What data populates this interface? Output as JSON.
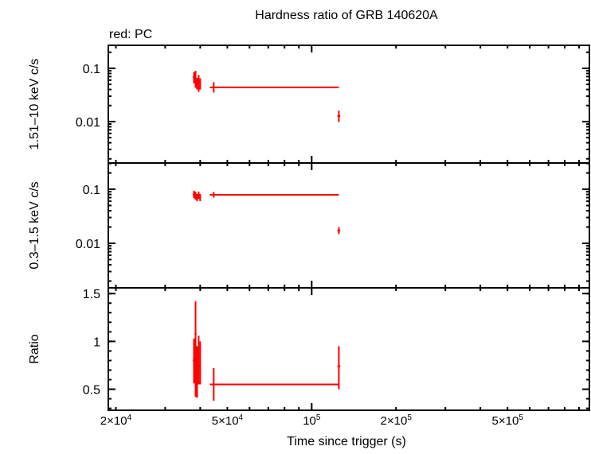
{
  "chart_data": {
    "type": "scatter",
    "title": "Hardness ratio of GRB 140620A",
    "subtitle": "red: PC",
    "xlabel": "Time since trigger (s)",
    "xscale": "log",
    "xlim": [
      18800,
      980000
    ],
    "xticks": [
      {
        "v": 20000,
        "m": "2×10",
        "e": "4"
      },
      {
        "v": 50000,
        "m": "5×10",
        "e": "4"
      },
      {
        "v": 100000,
        "m": "10",
        "e": "5"
      },
      {
        "v": 200000,
        "m": "2×10",
        "e": "5"
      },
      {
        "v": 500000,
        "m": "5×10",
        "e": "5"
      }
    ],
    "series_color": "#ff0000",
    "panels": [
      {
        "ylabel": "1.51–10 keV c/s",
        "yscale": "log",
        "ylim": [
          0.00167,
          0.27
        ],
        "yticks": [
          {
            "v": 0.1,
            "label": "0.1"
          },
          {
            "v": 0.01,
            "label": "0.01"
          }
        ],
        "points": [
          {
            "x": 38000,
            "xlo": 37600,
            "xhi": 38300,
            "y": 0.068,
            "ylo": 0.052,
            "yhi": 0.085
          },
          {
            "x": 38500,
            "xlo": 38200,
            "xhi": 38800,
            "y": 0.062,
            "ylo": 0.043,
            "yhi": 0.09
          },
          {
            "x": 39000,
            "xlo": 38700,
            "xhi": 39300,
            "y": 0.052,
            "ylo": 0.04,
            "yhi": 0.066
          },
          {
            "x": 39500,
            "xlo": 39200,
            "xhi": 39800,
            "y": 0.058,
            "ylo": 0.036,
            "yhi": 0.075
          },
          {
            "x": 40000,
            "xlo": 39800,
            "xhi": 40300,
            "y": 0.05,
            "ylo": 0.04,
            "yhi": 0.065
          },
          {
            "x": 44700,
            "xlo": 43300,
            "xhi": 125000,
            "y": 0.0438,
            "ylo": 0.035,
            "yhi": 0.055
          },
          {
            "x": 125000,
            "xlo": 123500,
            "xhi": 126500,
            "y": 0.0127,
            "ylo": 0.0098,
            "yhi": 0.016
          }
        ]
      },
      {
        "ylabel": "0.3–1.5 keV c/s",
        "yscale": "log",
        "ylim": [
          0.0015,
          0.306
        ],
        "yticks": [
          {
            "v": 0.1,
            "label": "0.1"
          },
          {
            "v": 0.01,
            "label": "0.01"
          }
        ],
        "points": [
          {
            "x": 38000,
            "xlo": 37600,
            "xhi": 38300,
            "y": 0.08,
            "ylo": 0.068,
            "yhi": 0.094
          },
          {
            "x": 38500,
            "xlo": 38200,
            "xhi": 38800,
            "y": 0.075,
            "ylo": 0.064,
            "yhi": 0.09
          },
          {
            "x": 39000,
            "xlo": 38700,
            "xhi": 39300,
            "y": 0.07,
            "ylo": 0.06,
            "yhi": 0.082
          },
          {
            "x": 39500,
            "xlo": 39200,
            "xhi": 39800,
            "y": 0.078,
            "ylo": 0.066,
            "yhi": 0.09
          },
          {
            "x": 40000,
            "xlo": 39800,
            "xhi": 40300,
            "y": 0.07,
            "ylo": 0.06,
            "yhi": 0.082
          },
          {
            "x": 44700,
            "xlo": 43300,
            "xhi": 125000,
            "y": 0.079,
            "ylo": 0.07,
            "yhi": 0.089
          },
          {
            "x": 125000,
            "xlo": 123500,
            "xhi": 126500,
            "y": 0.0172,
            "ylo": 0.0148,
            "yhi": 0.02
          }
        ]
      },
      {
        "ylabel": "Ratio",
        "yscale": "linear",
        "ylim": [
          0.28,
          1.56
        ],
        "yticks": [
          {
            "v": 1.5,
            "label": "1.5"
          },
          {
            "v": 1,
            "label": "1"
          },
          {
            "v": 0.5,
            "label": "0.5"
          }
        ],
        "points": [
          {
            "x": 38000,
            "xlo": 37600,
            "xhi": 38300,
            "y": 0.8,
            "ylo": 0.56,
            "yhi": 1.03
          },
          {
            "x": 38500,
            "xlo": 38200,
            "xhi": 38800,
            "y": 1.08,
            "ylo": 0.42,
            "yhi": 1.42
          },
          {
            "x": 39000,
            "xlo": 38700,
            "xhi": 39300,
            "y": 0.75,
            "ylo": 0.41,
            "yhi": 0.95
          },
          {
            "x": 39500,
            "xlo": 39200,
            "xhi": 39800,
            "y": 0.75,
            "ylo": 0.55,
            "yhi": 1.06
          },
          {
            "x": 40000,
            "xlo": 39800,
            "xhi": 40300,
            "y": 0.7,
            "ylo": 0.55,
            "yhi": 1.0
          },
          {
            "x": 44700,
            "xlo": 43300,
            "xhi": 125000,
            "y": 0.55,
            "ylo": 0.38,
            "yhi": 0.72
          },
          {
            "x": 125000,
            "xlo": 123500,
            "xhi": 126500,
            "y": 0.74,
            "ylo": 0.5,
            "yhi": 0.95
          }
        ]
      }
    ]
  }
}
